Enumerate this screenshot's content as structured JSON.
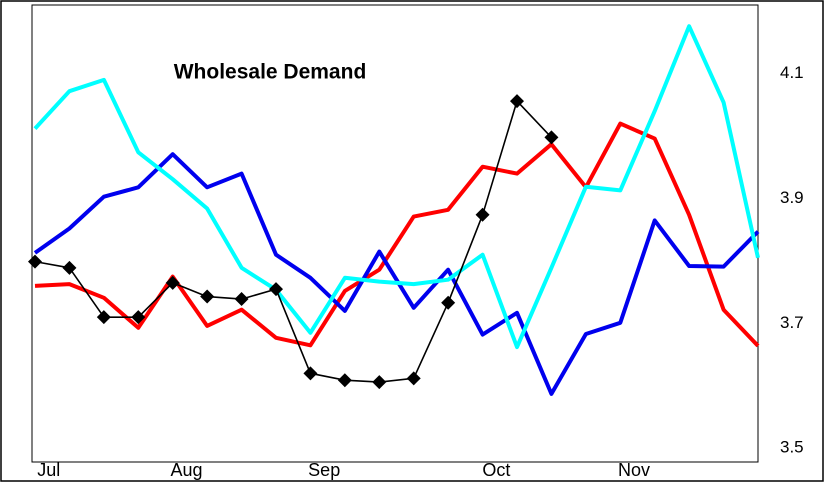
{
  "chart_data": {
    "type": "line",
    "title": "Wholesale Demand",
    "categories": [
      "Jul",
      null,
      null,
      null,
      "Aug",
      null,
      null,
      null,
      "Sep",
      null,
      null,
      null,
      null,
      "Oct",
      null,
      null,
      null,
      "Nov",
      null,
      null,
      null,
      null
    ],
    "ylim": [
      3.478,
      4.21
    ],
    "y2ticks_side": "right",
    "yticks": [
      3.5,
      3.7,
      3.9,
      4.1
    ],
    "grid": false,
    "series": [
      {
        "color": "#ff0000",
        "values": [
          3.76,
          3.763,
          3.741,
          3.693,
          3.775,
          3.696,
          3.722,
          3.677,
          3.665,
          3.752,
          3.786,
          3.871,
          3.882,
          3.951,
          3.94,
          3.987,
          3.918,
          4.02,
          3.996,
          3.874,
          3.722,
          3.664
        ]
      },
      {
        "color": "#0000ee",
        "values": [
          3.813,
          3.852,
          3.903,
          3.918,
          3.971,
          3.918,
          3.94,
          3.81,
          3.773,
          3.72,
          3.815,
          3.725,
          3.786,
          3.682,
          3.717,
          3.587,
          3.683,
          3.701,
          3.865,
          3.792,
          3.791,
          3.847
        ]
      },
      {
        "color": "#00ffff",
        "values": [
          4.012,
          4.072,
          4.09,
          3.974,
          3.931,
          3.884,
          3.789,
          3.754,
          3.685,
          3.773,
          3.767,
          3.763,
          3.77,
          3.81,
          3.662,
          3.789,
          3.919,
          3.913,
          4.04,
          4.176,
          4.054,
          3.805
        ]
      },
      {
        "color": "#000000",
        "markers": true,
        "values": [
          3.799,
          3.789,
          3.71,
          3.71,
          3.765,
          3.743,
          3.739,
          3.755,
          3.62,
          3.609,
          3.606,
          3.612,
          3.733,
          3.874,
          4.056,
          3.998,
          null,
          null,
          null,
          null,
          null,
          null
        ]
      }
    ]
  }
}
